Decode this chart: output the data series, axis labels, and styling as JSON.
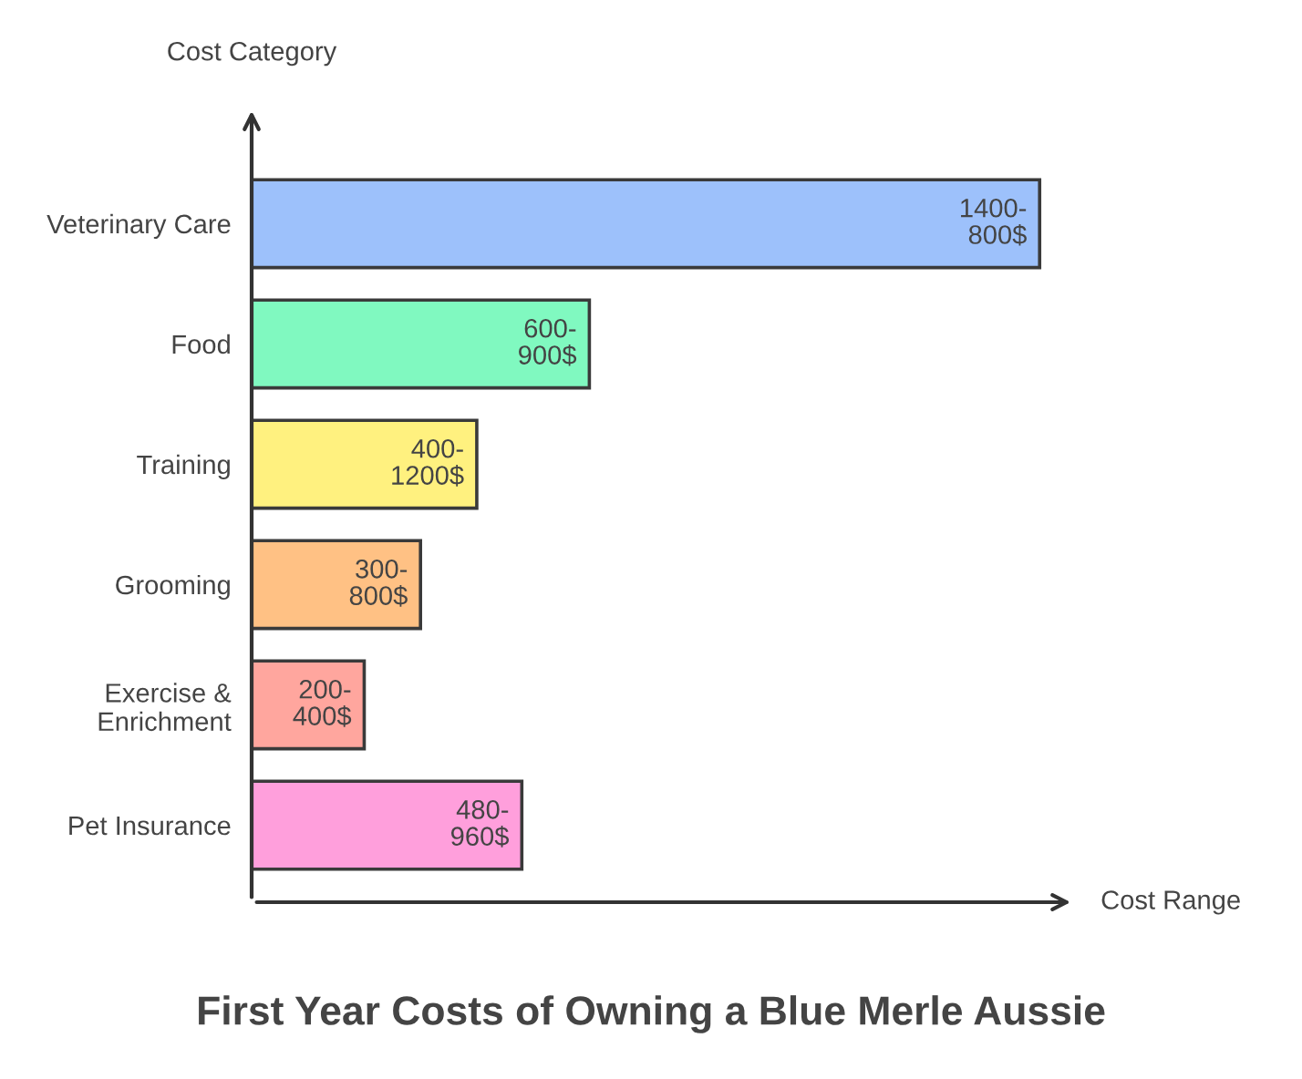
{
  "chart_data": {
    "type": "bar",
    "orientation": "horizontal",
    "title": "First Year Costs of Owning a Blue Merle Aussie",
    "xlabel": "Cost Range",
    "ylabel": "Cost Category",
    "categories": [
      "Veterinary Care",
      "Food",
      "Training",
      "Grooming",
      "Exercise & Enrichment",
      "Pet Insurance"
    ],
    "values": [
      1400,
      600,
      400,
      300,
      200,
      480
    ],
    "colors": [
      "#9dc1fb",
      "#80f9c0",
      "#fff17f",
      "#ffc184",
      "#ffa69e",
      "#ff9fdc"
    ],
    "value_labels": [
      "1400-800$",
      "600-900$",
      "400-1200$",
      "300-800$",
      "200-400$",
      "480-960$"
    ],
    "grid": false,
    "legend": false
  }
}
